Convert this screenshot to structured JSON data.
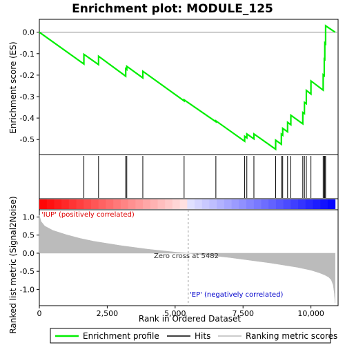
{
  "chart_data": {
    "type": "line",
    "title": "Enrichment plot: MODULE_125",
    "xlabel": "Rank in Ordered Dataset",
    "ylabel_top": "Enrichment score (ES)",
    "ylabel_bottom": "Ranked list metric (Signal2Noise)",
    "x_ticks": [
      "0",
      "2,500",
      "5,000",
      "7,500",
      "10,000"
    ],
    "x_tick_values": [
      0,
      2500,
      5000,
      7500,
      10000
    ],
    "xlim": [
      0,
      11000
    ],
    "es_yticks": [
      "0.0",
      "-0.1",
      "-0.2",
      "-0.3",
      "-0.4",
      "-0.5"
    ],
    "es_ytick_values": [
      0,
      -0.1,
      -0.2,
      -0.3,
      -0.4,
      -0.5
    ],
    "es_ylim": [
      -0.57,
      0.06
    ],
    "metric_yticks": [
      "1.0",
      "0.5",
      "0.0",
      "-0.5",
      "-1.0"
    ],
    "metric_ytick_values": [
      1.0,
      0.5,
      0.0,
      -0.5,
      -1.0
    ],
    "metric_ylim": [
      -1.45,
      1.2
    ],
    "hits": [
      1640,
      2180,
      3180,
      3220,
      3810,
      5330,
      6500,
      7560,
      7640,
      7900,
      8700,
      8910,
      8960,
      9140,
      9260,
      9700,
      9760,
      9830,
      10000,
      10450,
      10490,
      10510,
      10540
    ],
    "es_curve": {
      "x": [
        0,
        1640,
        1641,
        2180,
        2181,
        3180,
        3181,
        3220,
        3221,
        3810,
        3811,
        5330,
        5331,
        6500,
        6501,
        7560,
        7561,
        7640,
        7641,
        7900,
        7901,
        8700,
        8701,
        8910,
        8911,
        8960,
        8961,
        9140,
        9141,
        9260,
        9261,
        9700,
        9701,
        9760,
        9761,
        9830,
        9831,
        10000,
        10001,
        10450,
        10451,
        10490,
        10491,
        10510,
        10511,
        10540,
        10541,
        10890
      ],
      "y": [
        0,
        -0.148,
        -0.103,
        -0.151,
        -0.112,
        -0.205,
        -0.17,
        -0.174,
        -0.159,
        -0.213,
        -0.182,
        -0.32,
        -0.315,
        -0.417,
        -0.413,
        -0.508,
        -0.485,
        -0.492,
        -0.474,
        -0.497,
        -0.474,
        -0.545,
        -0.503,
        -0.522,
        -0.475,
        -0.48,
        -0.448,
        -0.464,
        -0.42,
        -0.431,
        -0.387,
        -0.427,
        -0.374,
        -0.379,
        -0.327,
        -0.333,
        -0.271,
        -0.288,
        -0.227,
        -0.27,
        -0.198,
        -0.202,
        -0.125,
        -0.127,
        -0.05,
        -0.054,
        0.03,
        0.0
      ]
    },
    "metric_curve": {
      "x": [
        0,
        60,
        200,
        500,
        1000,
        1500,
        2000,
        2500,
        3000,
        3500,
        4000,
        4500,
        5000,
        5482,
        6000,
        6500,
        7000,
        7500,
        8000,
        8500,
        9000,
        9500,
        10000,
        10300,
        10500,
        10650,
        10750,
        10820,
        10860,
        10890
      ],
      "y": [
        1.05,
        0.88,
        0.75,
        0.63,
        0.51,
        0.41,
        0.33,
        0.27,
        0.21,
        0.16,
        0.11,
        0.07,
        0.03,
        0.0,
        -0.04,
        -0.08,
        -0.12,
        -0.17,
        -0.22,
        -0.27,
        -0.33,
        -0.39,
        -0.47,
        -0.54,
        -0.6,
        -0.66,
        -0.74,
        -0.88,
        -1.1,
        -1.38
      ]
    },
    "zero_cross": 5482,
    "annotations": {
      "up": "'IUP' (positively correlated)",
      "down": "'EP' (negatively correlated)",
      "zero": "Zero cross at 5482"
    },
    "legend": {
      "position": "bottom",
      "items": [
        "Enrichment profile",
        "Hits",
        "Ranking metric scores"
      ]
    },
    "colors": {
      "es_line": "#00ee00",
      "hits": "#000000",
      "metric_fill": "#bbbbbb",
      "up_text": "#dd0000",
      "down_text": "#0000cc",
      "heat_red": "#ff0000",
      "heat_blue": "#0000ff"
    }
  }
}
